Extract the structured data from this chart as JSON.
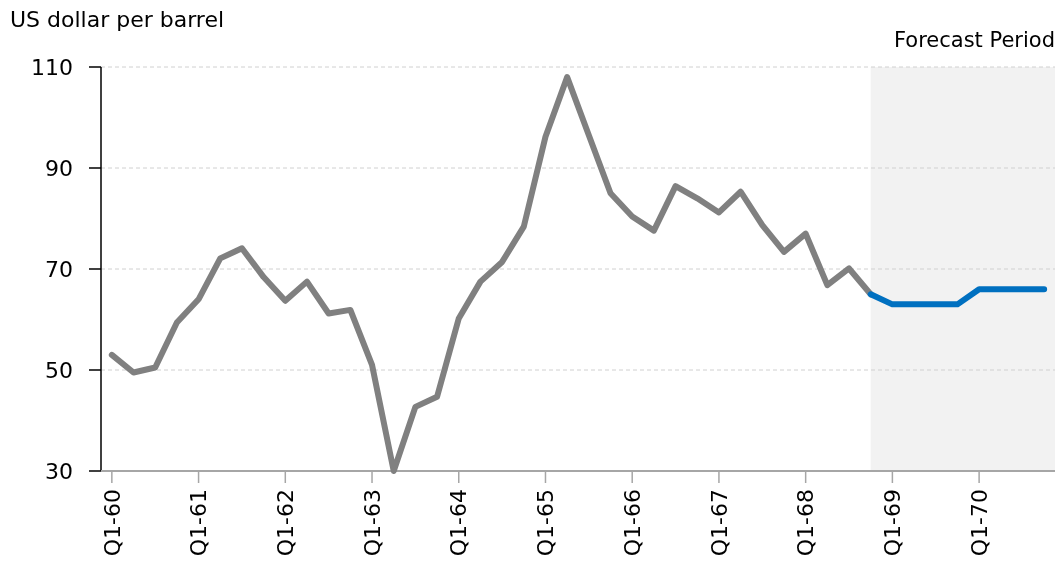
{
  "chart_data": {
    "type": "line",
    "ylabel": "US dollar per barrel",
    "categories": [
      "Q1-60",
      null,
      null,
      null,
      "Q1-61",
      null,
      null,
      null,
      "Q1-62",
      null,
      null,
      null,
      "Q1-63",
      null,
      null,
      null,
      "Q1-64",
      null,
      null,
      null,
      "Q1-65",
      null,
      null,
      null,
      "Q1-66",
      null,
      null,
      null,
      "Q1-67",
      null,
      null,
      null,
      "Q1-68",
      null,
      null,
      null,
      "Q1-69",
      null,
      null,
      null,
      "Q1-70",
      null,
      null,
      null
    ],
    "series": [
      {
        "color": "#808080",
        "values": [
          53,
          49.5,
          50.5,
          59.4,
          64,
          72.1,
          74.1,
          68.4,
          63.7,
          67.5,
          61.2,
          61.9,
          51,
          30,
          42.7,
          44.7,
          60.2,
          67.5,
          71.4,
          78.4,
          96.2,
          108,
          96.5,
          85,
          80.4,
          77.6,
          86.4,
          84,
          81.2,
          85.3,
          78.7,
          73.4,
          77,
          66.8,
          70.1,
          65,
          null,
          null,
          null,
          null,
          null,
          null,
          null,
          null
        ]
      },
      {
        "color": "#0070c0",
        "values": [
          null,
          null,
          null,
          null,
          null,
          null,
          null,
          null,
          null,
          null,
          null,
          null,
          null,
          null,
          null,
          null,
          null,
          null,
          null,
          null,
          null,
          null,
          null,
          null,
          null,
          null,
          null,
          null,
          null,
          null,
          null,
          null,
          null,
          null,
          null,
          65,
          63,
          63,
          63,
          63,
          66,
          66,
          66,
          66
        ]
      }
    ],
    "ylim": [
      30,
      110
    ],
    "yticks": [
      30,
      50,
      70,
      90,
      110
    ],
    "grid": "y",
    "line_style": "solid",
    "marker": "none",
    "annotations": [
      "Forecast Period"
    ]
  }
}
